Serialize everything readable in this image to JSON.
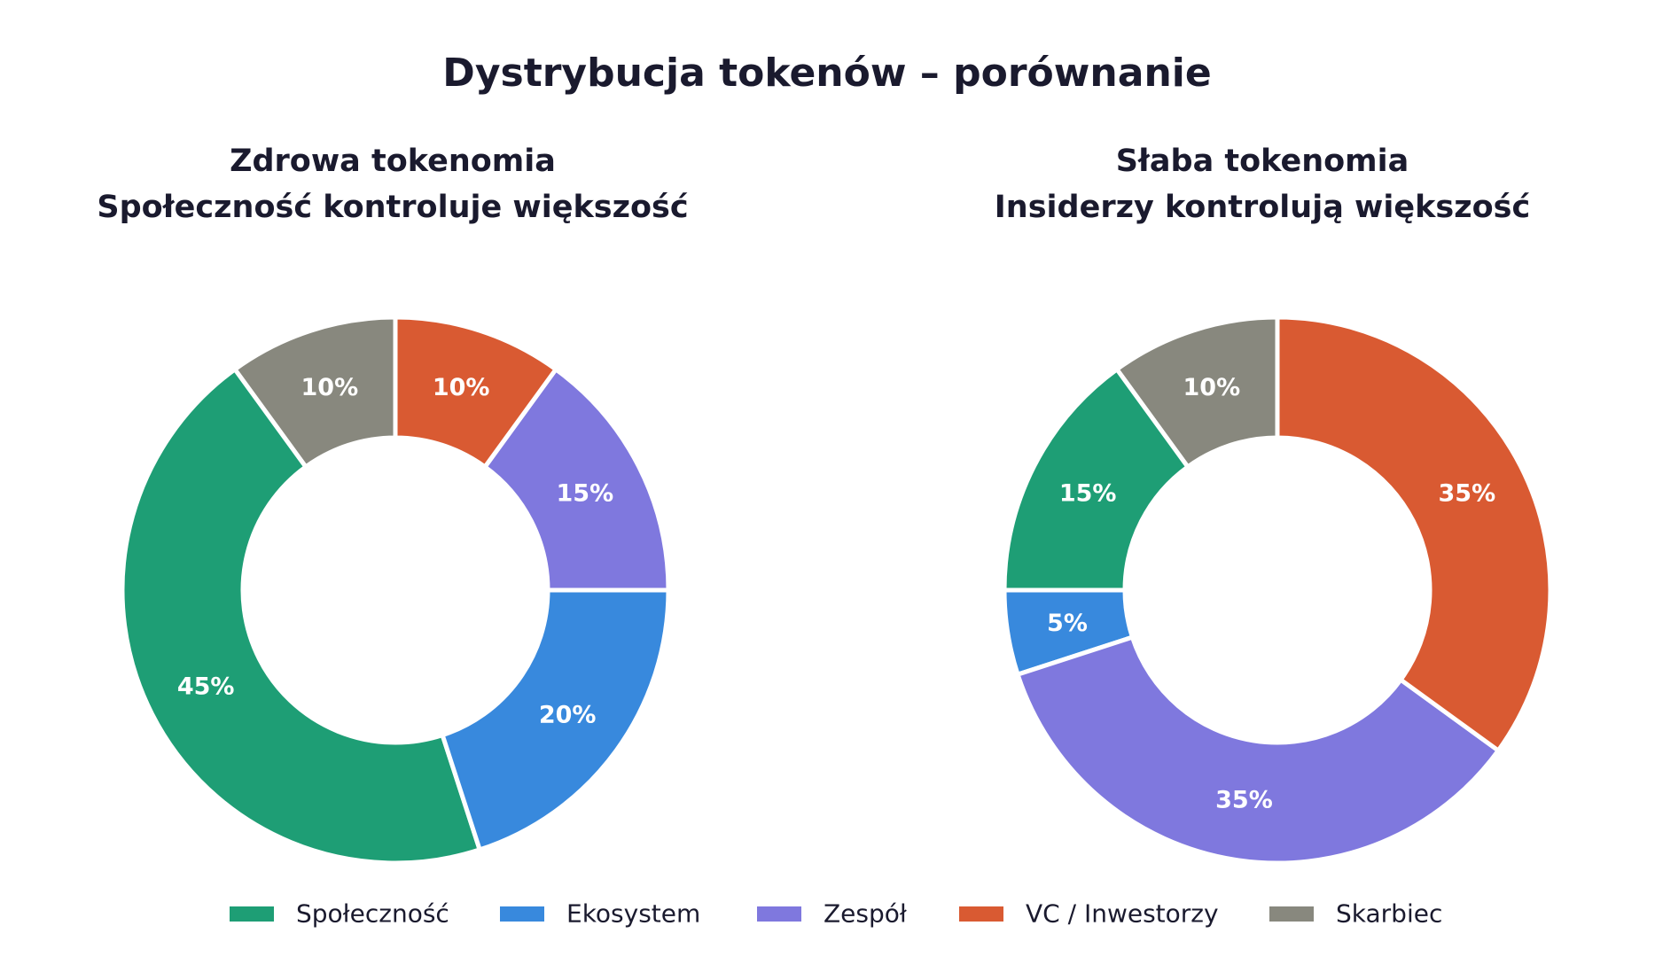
{
  "title": "Dystrybucja tokenów – porównanie",
  "categories": [
    "Społeczność",
    "Ekosystem",
    "Zespół",
    "VC / Inwestorzy",
    "Skarbiec"
  ],
  "colors": {
    "Społeczność": "#1e9e75",
    "Ekosystem": "#3889dd",
    "Zespół": "#7f78de",
    "VC / Inwestorzy": "#d95a32",
    "Skarbiec": "#88887e"
  },
  "chart_data": [
    {
      "type": "pie",
      "variant": "donut",
      "title_line1": "Zdrowa tokenomia",
      "title_line2": "Społeczność kontroluje większość",
      "start": "top",
      "direction": "counterclockwise",
      "slices": [
        {
          "category": "Skarbiec",
          "value": 10,
          "label": "10%"
        },
        {
          "category": "Społeczność",
          "value": 45,
          "label": "45%"
        },
        {
          "category": "Ekosystem",
          "value": 20,
          "label": "20%"
        },
        {
          "category": "Zespół",
          "value": 15,
          "label": "15%"
        },
        {
          "category": "VC / Inwestorzy",
          "value": 10,
          "label": "10%"
        }
      ]
    },
    {
      "type": "pie",
      "variant": "donut",
      "title_line1": "Słaba tokenomia",
      "title_line2": "Insiderzy kontrolują większość",
      "start": "top",
      "direction": "counterclockwise",
      "slices": [
        {
          "category": "Skarbiec",
          "value": 10,
          "label": "10%"
        },
        {
          "category": "Społeczność",
          "value": 15,
          "label": "15%"
        },
        {
          "category": "Ekosystem",
          "value": 5,
          "label": "5%"
        },
        {
          "category": "Zespół",
          "value": 35,
          "label": "35%"
        },
        {
          "category": "VC / Inwestorzy",
          "value": 35,
          "label": "35%"
        }
      ]
    }
  ],
  "legend": {
    "position": "bottom-center",
    "items": [
      "Społeczność",
      "Ekosystem",
      "Zespół",
      "VC / Inwestorzy",
      "Skarbiec"
    ]
  }
}
